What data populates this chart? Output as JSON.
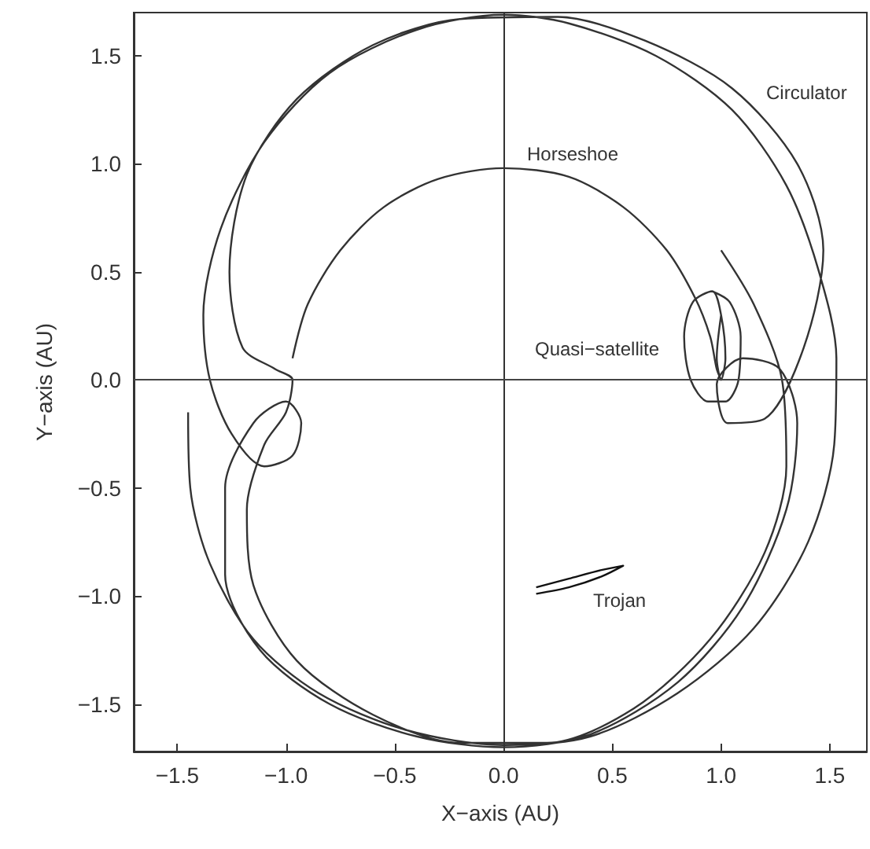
{
  "chart_data": {
    "type": "line",
    "xlabel": "X−axis (AU)",
    "ylabel": "Y−axis (AU)",
    "xlim": [
      -1.7,
      1.67
    ],
    "ylim": [
      -1.72,
      1.7
    ],
    "xticks": [
      -1.5,
      {
        "value": -1,
        "label": "−1.0"
      },
      -0.5,
      {
        "value": 0,
        "label": "0.0"
      },
      0.5,
      {
        "value": 1,
        "label": "1.0"
      },
      1.5
    ],
    "yticks": [
      -1.5,
      {
        "value": -1,
        "label": "−1.0"
      },
      -0.5,
      {
        "value": 0,
        "label": "0.0"
      },
      0.5,
      {
        "value": 1,
        "label": "1.0"
      },
      1.5
    ],
    "series": [
      {
        "name": "Circulator",
        "color": "#333333",
        "x": [
          -1.45,
          -1.44,
          -1.35,
          -1.15,
          -0.85,
          -0.45,
          0,
          0.4,
          0.8,
          1.15,
          1.4,
          1.52,
          1.53,
          1.45,
          1.3,
          1.05,
          0.7,
          0.3,
          0,
          -0.4,
          -0.8,
          -1.1,
          -1.3,
          -1.38,
          -1.35,
          -1.25,
          -1.1,
          -0.97,
          -0.93,
          -1.0,
          -1.15,
          -1.28,
          -1.28,
          -1.12,
          -0.8,
          -0.4,
          0,
          0.4,
          0.8,
          1.1,
          1.3,
          1.35,
          1.27,
          1.1,
          0.98,
          1.03,
          1.2,
          1.38,
          1.47,
          1.35,
          1.05,
          0.65,
          0.25,
          -0.2,
          -0.6,
          -0.95,
          -1.18,
          -1.26,
          -1.2,
          -1.05,
          -0.97,
          -1.0,
          -1.1,
          -1.18,
          -1.15,
          -0.95,
          -0.6,
          -0.2,
          0.2,
          0.6,
          0.95,
          1.2,
          1.3,
          1.28,
          1.15,
          1.0
        ],
        "values": [
          -0.15,
          -0.5,
          -0.85,
          -1.2,
          -1.45,
          -1.62,
          -1.69,
          -1.65,
          -1.45,
          -1.15,
          -0.75,
          -0.3,
          0.1,
          0.5,
          0.9,
          1.25,
          1.5,
          1.65,
          1.69,
          1.62,
          1.42,
          1.1,
          0.7,
          0.3,
          0,
          -0.25,
          -0.4,
          -0.35,
          -0.2,
          -0.1,
          -0.2,
          -0.5,
          -0.9,
          -1.25,
          -1.5,
          -1.65,
          -1.7,
          -1.64,
          -1.4,
          -1.05,
          -0.6,
          -0.2,
          0.05,
          0.1,
          -0.02,
          -0.2,
          -0.18,
          0.15,
          0.6,
          1.0,
          1.35,
          1.57,
          1.68,
          1.67,
          1.55,
          1.3,
          0.95,
          0.5,
          0.15,
          0.05,
          0.0,
          -0.15,
          -0.3,
          -0.6,
          -0.95,
          -1.3,
          -1.55,
          -1.68,
          -1.68,
          -1.52,
          -1.2,
          -0.8,
          -0.4,
          0.0,
          0.35,
          0.6
        ]
      },
      {
        "name": "Horseshoe",
        "color": "#333333",
        "x": [
          -0.97,
          -0.9,
          -0.75,
          -0.55,
          -0.3,
          0,
          0.3,
          0.55,
          0.75,
          0.88,
          0.95,
          0.98,
          1.0
        ],
        "values": [
          0.1,
          0.35,
          0.6,
          0.8,
          0.93,
          0.98,
          0.94,
          0.8,
          0.6,
          0.38,
          0.2,
          0.05,
          0.0
        ]
      },
      {
        "name": "Quasi−satellite",
        "color": "#333333",
        "x": [
          0.96,
          1.04,
          1.09,
          1.08,
          1.02,
          0.94,
          0.86,
          0.83,
          0.87,
          0.96,
          1.0,
          1.02,
          1.0,
          0.98,
          1.0
        ],
        "values": [
          0.41,
          0.36,
          0.2,
          0.0,
          -0.1,
          -0.1,
          0.0,
          0.2,
          0.36,
          0.41,
          0.3,
          0.1,
          0.0,
          0.1,
          0.3
        ]
      },
      {
        "name": "Trojan",
        "color": "#111111",
        "x": [
          0.15,
          0.3,
          0.45,
          0.55,
          0.45,
          0.3,
          0.15
        ],
        "values": [
          -0.96,
          -0.92,
          -0.88,
          -0.86,
          -0.91,
          -0.96,
          -0.99
        ]
      }
    ],
    "ref_lines": [
      {
        "axis": "x",
        "value": 0,
        "color": "#333333"
      },
      {
        "axis": "y",
        "value": 0,
        "color": "#444444"
      }
    ]
  }
}
